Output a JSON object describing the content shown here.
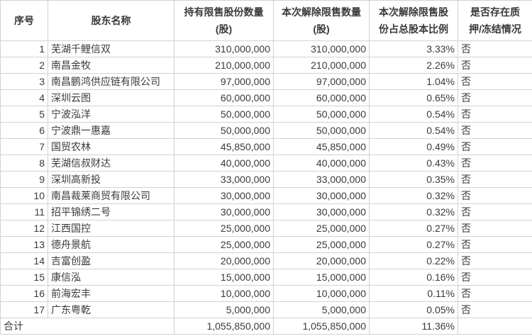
{
  "colors": {
    "text": "#3a3a3a",
    "gridline": "#d2d2d2",
    "background": "#ffffff"
  },
  "table": {
    "columns": [
      {
        "key": "index",
        "lines": [
          "序号"
        ]
      },
      {
        "key": "name",
        "lines": [
          "股东名称"
        ]
      },
      {
        "key": "held",
        "lines": [
          "持有限售股份数量",
          "(股)"
        ]
      },
      {
        "key": "released",
        "lines": [
          "本次解除限售数量",
          "(股)"
        ]
      },
      {
        "key": "ratio",
        "lines": [
          "本次解除限售股",
          "份占总股本比例"
        ]
      },
      {
        "key": "pledge",
        "lines": [
          "是否存在质",
          "押/冻结情况"
        ]
      }
    ],
    "rows": [
      {
        "index": "1",
        "name": "芜湖千鲤信双",
        "held": "310,000,000",
        "released": "310,000,000",
        "ratio": "3.33%",
        "pledge": "否"
      },
      {
        "index": "2",
        "name": "南昌金牧",
        "held": "210,000,000",
        "released": "210,000,000",
        "ratio": "2.26%",
        "pledge": "否"
      },
      {
        "index": "3",
        "name": "南昌鹏鸿供应链有限公司",
        "held": "97,000,000",
        "released": "97,000,000",
        "ratio": "1.04%",
        "pledge": "否"
      },
      {
        "index": "4",
        "name": "深圳云图",
        "held": "60,000,000",
        "released": "60,000,000",
        "ratio": "0.65%",
        "pledge": "否"
      },
      {
        "index": "5",
        "name": "宁波泓洋",
        "held": "50,000,000",
        "released": "50,000,000",
        "ratio": "0.54%",
        "pledge": "否"
      },
      {
        "index": "6",
        "name": "宁波鼎一惠嘉",
        "held": "50,000,000",
        "released": "50,000,000",
        "ratio": "0.54%",
        "pledge": "否"
      },
      {
        "index": "7",
        "name": "国贸农林",
        "held": "45,850,000",
        "released": "45,850,000",
        "ratio": "0.49%",
        "pledge": "否"
      },
      {
        "index": "8",
        "name": "芜湖信叔财达",
        "held": "40,000,000",
        "released": "40,000,000",
        "ratio": "0.43%",
        "pledge": "否"
      },
      {
        "index": "9",
        "name": "深圳高新投",
        "held": "33,000,000",
        "released": "33,000,000",
        "ratio": "0.35%",
        "pledge": "否"
      },
      {
        "index": "10",
        "name": "南昌裁莱商贸有限公司",
        "held": "30,000,000",
        "released": "30,000,000",
        "ratio": "0.32%",
        "pledge": "否"
      },
      {
        "index": "11",
        "name": "招平锦绣二号",
        "held": "30,000,000",
        "released": "30,000,000",
        "ratio": "0.32%",
        "pledge": "否"
      },
      {
        "index": "12",
        "name": "江西国控",
        "held": "25,000,000",
        "released": "25,000,000",
        "ratio": "0.27%",
        "pledge": "否"
      },
      {
        "index": "13",
        "name": "德舟景航",
        "held": "25,000,000",
        "released": "25,000,000",
        "ratio": "0.27%",
        "pledge": "否"
      },
      {
        "index": "14",
        "name": "吉富创盈",
        "held": "20,000,000",
        "released": "20,000,000",
        "ratio": "0.22%",
        "pledge": "否"
      },
      {
        "index": "15",
        "name": "康信泓",
        "held": "15,000,000",
        "released": "15,000,000",
        "ratio": "0.16%",
        "pledge": "否"
      },
      {
        "index": "16",
        "name": "前海宏丰",
        "held": "10,000,000",
        "released": "10,000,000",
        "ratio": "0.11%",
        "pledge": "否"
      },
      {
        "index": "17",
        "name": "广东粤乾",
        "held": "5,000,000",
        "released": "5,000,000",
        "ratio": "0.05%",
        "pledge": "否"
      }
    ],
    "total": {
      "label": "合计",
      "held": "1,055,850,000",
      "released": "1,055,850,000",
      "ratio": "11.36%",
      "pledge": ""
    }
  }
}
